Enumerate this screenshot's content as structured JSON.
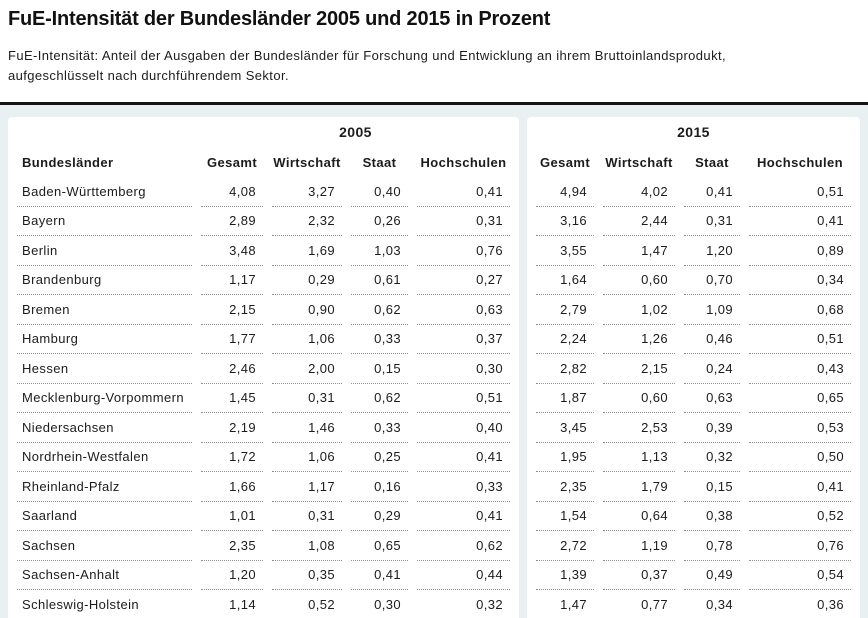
{
  "page": {
    "title": "FuE-Intensität der Bundesländer 2005 und 2015 in Prozent",
    "subtitle_line1": "FuE-Intensität: Anteil der Ausgaben der Bundesländer für Forschung und Entwicklung an ihrem Bruttoinlandsprodukt,",
    "subtitle_line2": "aufgeschlüsselt nach durchführendem Sektor."
  },
  "colors": {
    "background": "#e8f0f1",
    "card": "#ffffff",
    "text": "#1c1c1c",
    "rule": "#141414",
    "dotted_line": "#909090"
  },
  "chart_data": {
    "type": "table",
    "title": "FuE-Intensität der Bundesländer 2005 und 2015 in Prozent",
    "subtitle": "FuE-Intensität: Anteil der Ausgaben der Bundesländer für Forschung und Entwicklung an ihrem Bruttoinlandsprodukt, aufgeschlüsselt nach durchführendem Sektor.",
    "unit": "Prozent",
    "number_format": "decimal comma, 2 places",
    "row_label": "Bundesländer",
    "group_columns": [
      "2005",
      "2015"
    ],
    "columns": [
      "Gesamt",
      "Wirtschaft",
      "Staat",
      "Hochschulen"
    ],
    "rows": [
      {
        "name": "Baden-Württemberg",
        "2005": [
          4.08,
          3.27,
          0.4,
          0.41
        ],
        "2015": [
          4.94,
          4.02,
          0.41,
          0.51
        ]
      },
      {
        "name": "Bayern",
        "2005": [
          2.89,
          2.32,
          0.26,
          0.31
        ],
        "2015": [
          3.16,
          2.44,
          0.31,
          0.41
        ]
      },
      {
        "name": "Berlin",
        "2005": [
          3.48,
          1.69,
          1.03,
          0.76
        ],
        "2015": [
          3.55,
          1.47,
          1.2,
          0.89
        ]
      },
      {
        "name": "Brandenburg",
        "2005": [
          1.17,
          0.29,
          0.61,
          0.27
        ],
        "2015": [
          1.64,
          0.6,
          0.7,
          0.34
        ]
      },
      {
        "name": "Bremen",
        "2005": [
          2.15,
          0.9,
          0.62,
          0.63
        ],
        "2015": [
          2.79,
          1.02,
          1.09,
          0.68
        ]
      },
      {
        "name": "Hamburg",
        "2005": [
          1.77,
          1.06,
          0.33,
          0.37
        ],
        "2015": [
          2.24,
          1.26,
          0.46,
          0.51
        ]
      },
      {
        "name": "Hessen",
        "2005": [
          2.46,
          2.0,
          0.15,
          0.3
        ],
        "2015": [
          2.82,
          2.15,
          0.24,
          0.43
        ]
      },
      {
        "name": "Mecklenburg-Vorpommern",
        "2005": [
          1.45,
          0.31,
          0.62,
          0.51
        ],
        "2015": [
          1.87,
          0.6,
          0.63,
          0.65
        ]
      },
      {
        "name": "Niedersachsen",
        "2005": [
          2.19,
          1.46,
          0.33,
          0.4
        ],
        "2015": [
          3.45,
          2.53,
          0.39,
          0.53
        ]
      },
      {
        "name": "Nordrhein-Westfalen",
        "2005": [
          1.72,
          1.06,
          0.25,
          0.41
        ],
        "2015": [
          1.95,
          1.13,
          0.32,
          0.5
        ]
      },
      {
        "name": "Rheinland-Pfalz",
        "2005": [
          1.66,
          1.17,
          0.16,
          0.33
        ],
        "2015": [
          2.35,
          1.79,
          0.15,
          0.41
        ]
      },
      {
        "name": "Saarland",
        "2005": [
          1.01,
          0.31,
          0.29,
          0.41
        ],
        "2015": [
          1.54,
          0.64,
          0.38,
          0.52
        ]
      },
      {
        "name": "Sachsen",
        "2005": [
          2.35,
          1.08,
          0.65,
          0.62
        ],
        "2015": [
          2.72,
          1.19,
          0.78,
          0.76
        ]
      },
      {
        "name": "Sachsen-Anhalt",
        "2005": [
          1.2,
          0.35,
          0.41,
          0.44
        ],
        "2015": [
          1.39,
          0.37,
          0.49,
          0.54
        ]
      },
      {
        "name": "Schleswig-Holstein",
        "2005": [
          1.14,
          0.52,
          0.3,
          0.32
        ],
        "2015": [
          1.47,
          0.77,
          0.34,
          0.36
        ]
      }
    ]
  }
}
